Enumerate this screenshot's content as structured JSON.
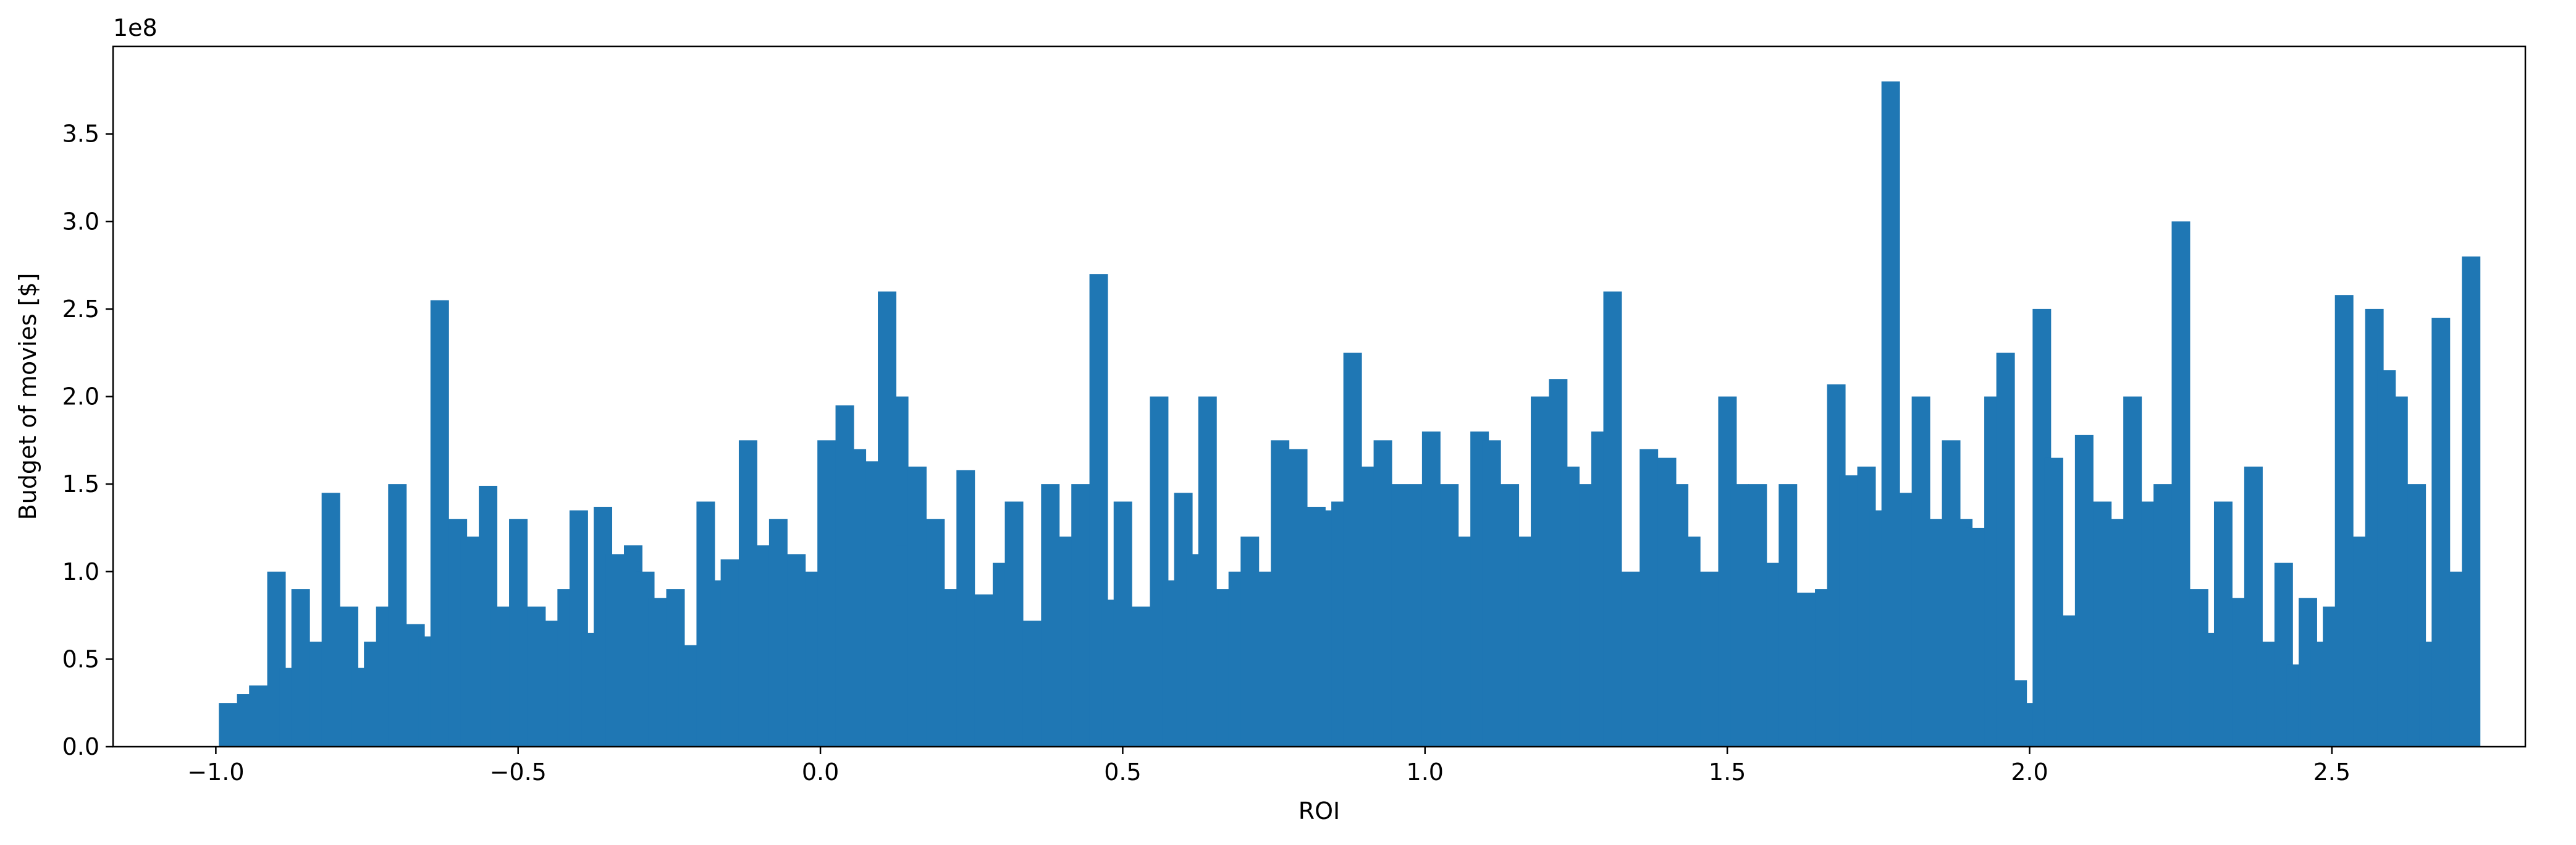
{
  "chart_data": {
    "type": "bar",
    "xlabel": "ROI",
    "ylabel": "Budget of movies [$]",
    "y_offset_label": "1e8",
    "xlim": [
      -1.17,
      2.82
    ],
    "ylim": [
      0,
      4.0
    ],
    "x_ticks": [
      -1.0,
      -0.5,
      0.0,
      0.5,
      1.0,
      1.5,
      2.0,
      2.5
    ],
    "x_tick_labels": [
      "−1.0",
      "−0.5",
      "0.0",
      "0.5",
      "1.0",
      "1.5",
      "2.0",
      "2.5"
    ],
    "y_ticks": [
      0,
      0.5,
      1.0,
      1.5,
      2.0,
      2.5,
      3.0,
      3.5
    ],
    "y_tick_labels": [
      "0.0",
      "0.5",
      "1.0",
      "1.5",
      "2.0",
      "2.5",
      "3.0",
      "3.5"
    ],
    "bar_color": "#1f77b4",
    "bar_width": 0.03,
    "bars": [
      {
        "x": -0.98,
        "y": 0.25
      },
      {
        "x": -0.95,
        "y": 0.3
      },
      {
        "x": -0.93,
        "y": 0.35
      },
      {
        "x": -0.9,
        "y": 1.0
      },
      {
        "x": -0.88,
        "y": 0.45
      },
      {
        "x": -0.86,
        "y": 0.9
      },
      {
        "x": -0.83,
        "y": 0.6
      },
      {
        "x": -0.81,
        "y": 1.45
      },
      {
        "x": -0.78,
        "y": 0.8
      },
      {
        "x": -0.76,
        "y": 0.45
      },
      {
        "x": -0.74,
        "y": 0.6
      },
      {
        "x": -0.72,
        "y": 0.8
      },
      {
        "x": -0.7,
        "y": 1.5
      },
      {
        "x": -0.67,
        "y": 0.7
      },
      {
        "x": -0.65,
        "y": 0.63
      },
      {
        "x": -0.63,
        "y": 2.55
      },
      {
        "x": -0.6,
        "y": 1.3
      },
      {
        "x": -0.58,
        "y": 1.2
      },
      {
        "x": -0.55,
        "y": 1.49
      },
      {
        "x": -0.53,
        "y": 0.8
      },
      {
        "x": -0.5,
        "y": 1.3
      },
      {
        "x": -0.47,
        "y": 0.8
      },
      {
        "x": -0.45,
        "y": 0.72
      },
      {
        "x": -0.42,
        "y": 0.9
      },
      {
        "x": -0.4,
        "y": 1.35
      },
      {
        "x": -0.38,
        "y": 0.65
      },
      {
        "x": -0.36,
        "y": 1.37
      },
      {
        "x": -0.34,
        "y": 1.1
      },
      {
        "x": -0.31,
        "y": 1.15
      },
      {
        "x": -0.29,
        "y": 1.0
      },
      {
        "x": -0.27,
        "y": 0.85
      },
      {
        "x": -0.24,
        "y": 0.9
      },
      {
        "x": -0.22,
        "y": 0.58
      },
      {
        "x": -0.19,
        "y": 1.4
      },
      {
        "x": -0.17,
        "y": 0.95
      },
      {
        "x": -0.15,
        "y": 1.07
      },
      {
        "x": -0.12,
        "y": 1.75
      },
      {
        "x": -0.1,
        "y": 1.15
      },
      {
        "x": -0.07,
        "y": 1.3
      },
      {
        "x": -0.04,
        "y": 1.1
      },
      {
        "x": -0.01,
        "y": 1.0
      },
      {
        "x": 0.01,
        "y": 1.75
      },
      {
        "x": 0.04,
        "y": 1.95
      },
      {
        "x": 0.06,
        "y": 1.7
      },
      {
        "x": 0.09,
        "y": 1.63
      },
      {
        "x": 0.11,
        "y": 2.6
      },
      {
        "x": 0.13,
        "y": 2.0
      },
      {
        "x": 0.14,
        "y": 1.15
      },
      {
        "x": 0.16,
        "y": 1.6
      },
      {
        "x": 0.19,
        "y": 1.3
      },
      {
        "x": 0.22,
        "y": 0.9
      },
      {
        "x": 0.24,
        "y": 1.58
      },
      {
        "x": 0.27,
        "y": 0.87
      },
      {
        "x": 0.3,
        "y": 1.05
      },
      {
        "x": 0.32,
        "y": 1.4
      },
      {
        "x": 0.35,
        "y": 0.72
      },
      {
        "x": 0.38,
        "y": 1.5
      },
      {
        "x": 0.41,
        "y": 1.2
      },
      {
        "x": 0.43,
        "y": 1.5
      },
      {
        "x": 0.46,
        "y": 2.7
      },
      {
        "x": 0.48,
        "y": 0.84
      },
      {
        "x": 0.5,
        "y": 1.4
      },
      {
        "x": 0.53,
        "y": 0.8
      },
      {
        "x": 0.56,
        "y": 2.0
      },
      {
        "x": 0.58,
        "y": 0.95
      },
      {
        "x": 0.6,
        "y": 1.45
      },
      {
        "x": 0.62,
        "y": 1.1
      },
      {
        "x": 0.64,
        "y": 2.0
      },
      {
        "x": 0.67,
        "y": 0.9
      },
      {
        "x": 0.69,
        "y": 1.0
      },
      {
        "x": 0.71,
        "y": 1.2
      },
      {
        "x": 0.74,
        "y": 1.0
      },
      {
        "x": 0.76,
        "y": 1.75
      },
      {
        "x": 0.79,
        "y": 1.7
      },
      {
        "x": 0.82,
        "y": 1.37
      },
      {
        "x": 0.84,
        "y": 1.35
      },
      {
        "x": 0.86,
        "y": 1.4
      },
      {
        "x": 0.88,
        "y": 2.25
      },
      {
        "x": 0.91,
        "y": 1.6
      },
      {
        "x": 0.93,
        "y": 1.75
      },
      {
        "x": 0.96,
        "y": 1.5
      },
      {
        "x": 0.99,
        "y": 1.5
      },
      {
        "x": 1.01,
        "y": 1.8
      },
      {
        "x": 1.04,
        "y": 1.5
      },
      {
        "x": 1.06,
        "y": 1.2
      },
      {
        "x": 1.09,
        "y": 1.8
      },
      {
        "x": 1.11,
        "y": 1.75
      },
      {
        "x": 1.14,
        "y": 1.5
      },
      {
        "x": 1.17,
        "y": 1.2
      },
      {
        "x": 1.19,
        "y": 2.0
      },
      {
        "x": 1.22,
        "y": 2.1
      },
      {
        "x": 1.24,
        "y": 1.6
      },
      {
        "x": 1.27,
        "y": 1.5
      },
      {
        "x": 1.29,
        "y": 1.8
      },
      {
        "x": 1.31,
        "y": 2.6
      },
      {
        "x": 1.34,
        "y": 1.0
      },
      {
        "x": 1.37,
        "y": 1.7
      },
      {
        "x": 1.4,
        "y": 1.65
      },
      {
        "x": 1.42,
        "y": 1.5
      },
      {
        "x": 1.44,
        "y": 1.2
      },
      {
        "x": 1.47,
        "y": 1.0
      },
      {
        "x": 1.5,
        "y": 2.0
      },
      {
        "x": 1.52,
        "y": 1.5
      },
      {
        "x": 1.55,
        "y": 1.5
      },
      {
        "x": 1.58,
        "y": 1.05
      },
      {
        "x": 1.6,
        "y": 1.5
      },
      {
        "x": 1.63,
        "y": 0.88
      },
      {
        "x": 1.66,
        "y": 0.9
      },
      {
        "x": 1.68,
        "y": 2.07
      },
      {
        "x": 1.7,
        "y": 1.55
      },
      {
        "x": 1.73,
        "y": 1.6
      },
      {
        "x": 1.75,
        "y": 1.35
      },
      {
        "x": 1.77,
        "y": 3.8
      },
      {
        "x": 1.8,
        "y": 1.45
      },
      {
        "x": 1.82,
        "y": 2.0
      },
      {
        "x": 1.84,
        "y": 1.3
      },
      {
        "x": 1.87,
        "y": 1.75
      },
      {
        "x": 1.89,
        "y": 1.3
      },
      {
        "x": 1.91,
        "y": 1.25
      },
      {
        "x": 1.94,
        "y": 2.0
      },
      {
        "x": 1.96,
        "y": 2.25
      },
      {
        "x": 1.98,
        "y": 0.38
      },
      {
        "x": 2.0,
        "y": 0.25
      },
      {
        "x": 2.02,
        "y": 2.5
      },
      {
        "x": 2.04,
        "y": 1.65
      },
      {
        "x": 2.06,
        "y": 0.75
      },
      {
        "x": 2.09,
        "y": 1.78
      },
      {
        "x": 2.12,
        "y": 1.4
      },
      {
        "x": 2.14,
        "y": 1.3
      },
      {
        "x": 2.17,
        "y": 2.0
      },
      {
        "x": 2.2,
        "y": 1.4
      },
      {
        "x": 2.22,
        "y": 1.5
      },
      {
        "x": 2.25,
        "y": 3.0
      },
      {
        "x": 2.28,
        "y": 0.9
      },
      {
        "x": 2.3,
        "y": 0.65
      },
      {
        "x": 2.32,
        "y": 1.4
      },
      {
        "x": 2.35,
        "y": 0.85
      },
      {
        "x": 2.37,
        "y": 1.6
      },
      {
        "x": 2.39,
        "y": 0.6
      },
      {
        "x": 2.42,
        "y": 1.05
      },
      {
        "x": 2.44,
        "y": 0.47
      },
      {
        "x": 2.46,
        "y": 0.85
      },
      {
        "x": 2.48,
        "y": 0.6
      },
      {
        "x": 2.5,
        "y": 0.8
      },
      {
        "x": 2.52,
        "y": 2.58
      },
      {
        "x": 2.55,
        "y": 1.2
      },
      {
        "x": 2.57,
        "y": 2.5
      },
      {
        "x": 2.59,
        "y": 2.15
      },
      {
        "x": 2.61,
        "y": 2.0
      },
      {
        "x": 2.64,
        "y": 1.5
      },
      {
        "x": 2.66,
        "y": 0.6
      },
      {
        "x": 2.68,
        "y": 2.45
      },
      {
        "x": 2.71,
        "y": 1.0
      },
      {
        "x": 2.73,
        "y": 2.8
      }
    ]
  }
}
